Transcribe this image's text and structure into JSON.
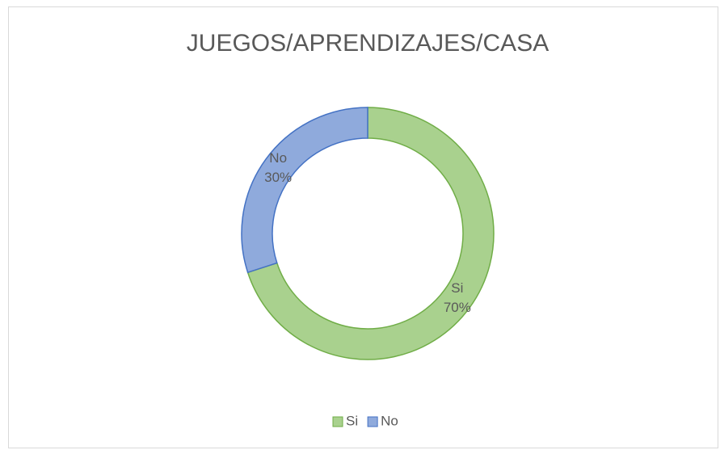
{
  "chart_data": {
    "type": "doughnut",
    "title": "JUEGOS/APRENDIZAJES/CASA",
    "categories": [
      "Si",
      "No"
    ],
    "values": [
      70,
      30
    ],
    "value_labels": [
      "70%",
      "30%"
    ],
    "colors": [
      "#a9d18e",
      "#8faadc"
    ],
    "border_colors": [
      "#70ad47",
      "#4472c4"
    ],
    "legend": "bottom"
  }
}
